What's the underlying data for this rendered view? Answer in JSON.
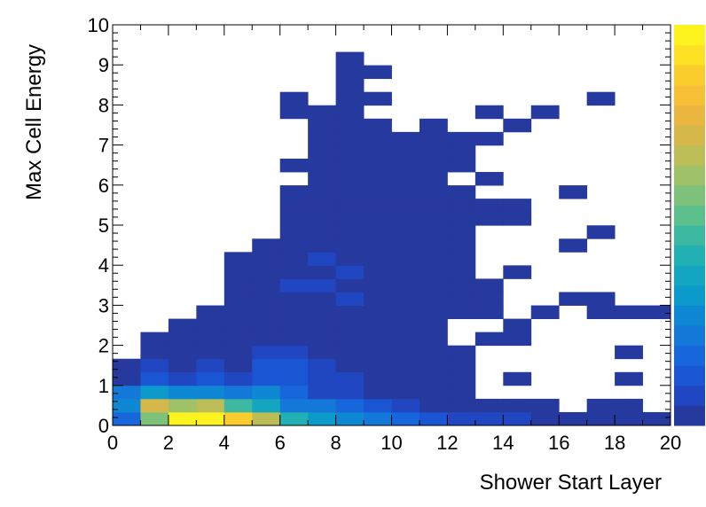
{
  "chart_data": {
    "type": "heatmap",
    "xlabel": "Shower Start Layer",
    "ylabel": "Max Cell Energy",
    "xlim": [
      0,
      20
    ],
    "ylim": [
      0,
      10
    ],
    "x_bin_width": 1,
    "y_bin_width": 0.333,
    "x_ticks": [
      "0",
      "2",
      "4",
      "6",
      "8",
      "10",
      "12",
      "14",
      "16",
      "18",
      "20"
    ],
    "y_ticks": [
      "0",
      "1",
      "2",
      "3",
      "4",
      "5",
      "6",
      "7",
      "8",
      "9",
      "10"
    ],
    "color_scale": {
      "max": 100,
      "palette": [
        "#26399e",
        "#2146c1",
        "#1a55d4",
        "#1866dc",
        "#1478d8",
        "#0e88d2",
        "#0b9ac9",
        "#14a6c0",
        "#21b1b2",
        "#3cb9a0",
        "#5bbf8c",
        "#7dc17a",
        "#9fc167",
        "#bdbd57",
        "#d6b84a",
        "#ebb740",
        "#f6bf36",
        "#fbcd2c",
        "#fde125",
        "#fdf31e"
      ]
    },
    "cells": [
      [
        0,
        0,
        20
      ],
      [
        1,
        0,
        60
      ],
      [
        2,
        0,
        100
      ],
      [
        3,
        0,
        100
      ],
      [
        4,
        0,
        90
      ],
      [
        5,
        0,
        70
      ],
      [
        6,
        0,
        45
      ],
      [
        7,
        0,
        35
      ],
      [
        8,
        0,
        30
      ],
      [
        9,
        0,
        25
      ],
      [
        10,
        0,
        20
      ],
      [
        11,
        0,
        12
      ],
      [
        12,
        0,
        10
      ],
      [
        13,
        0,
        8
      ],
      [
        14,
        0,
        6
      ],
      [
        15,
        0,
        5
      ],
      [
        16,
        0,
        3
      ],
      [
        17,
        0,
        2
      ],
      [
        18,
        0,
        1
      ],
      [
        19,
        0,
        1
      ],
      [
        0,
        1,
        30
      ],
      [
        1,
        1,
        75
      ],
      [
        2,
        1,
        65
      ],
      [
        3,
        1,
        70
      ],
      [
        4,
        1,
        50
      ],
      [
        5,
        1,
        40
      ],
      [
        6,
        1,
        25
      ],
      [
        7,
        1,
        22
      ],
      [
        8,
        1,
        18
      ],
      [
        9,
        1,
        12
      ],
      [
        10,
        1,
        6
      ],
      [
        11,
        1,
        1
      ],
      [
        12,
        1,
        1
      ],
      [
        13,
        1,
        1
      ],
      [
        14,
        1,
        1
      ],
      [
        15,
        1,
        1
      ],
      [
        17,
        1,
        1
      ],
      [
        18,
        1,
        1
      ],
      [
        0,
        2,
        25
      ],
      [
        1,
        2,
        35
      ],
      [
        2,
        2,
        30
      ],
      [
        3,
        2,
        28
      ],
      [
        4,
        2,
        25
      ],
      [
        5,
        2,
        30
      ],
      [
        6,
        2,
        20
      ],
      [
        7,
        2,
        10
      ],
      [
        8,
        2,
        8
      ],
      [
        9,
        2,
        5
      ],
      [
        10,
        2,
        3
      ],
      [
        11,
        2,
        2
      ],
      [
        12,
        2,
        1
      ],
      [
        0,
        3,
        1
      ],
      [
        1,
        3,
        12
      ],
      [
        2,
        3,
        6
      ],
      [
        3,
        3,
        14
      ],
      [
        4,
        3,
        10
      ],
      [
        5,
        3,
        15
      ],
      [
        6,
        3,
        12
      ],
      [
        7,
        3,
        10
      ],
      [
        8,
        3,
        6
      ],
      [
        9,
        3,
        1
      ],
      [
        10,
        3,
        1
      ],
      [
        11,
        3,
        1
      ],
      [
        12,
        3,
        1
      ],
      [
        14,
        3,
        1
      ],
      [
        18,
        3,
        1
      ],
      [
        0,
        4,
        1
      ],
      [
        1,
        4,
        8
      ],
      [
        2,
        4,
        1
      ],
      [
        3,
        4,
        8
      ],
      [
        4,
        4,
        4
      ],
      [
        5,
        4,
        14
      ],
      [
        6,
        4,
        12
      ],
      [
        7,
        4,
        10
      ],
      [
        8,
        4,
        5
      ],
      [
        9,
        4,
        4
      ],
      [
        10,
        4,
        1
      ],
      [
        11,
        4,
        1
      ],
      [
        12,
        4,
        1
      ],
      [
        1,
        5,
        1
      ],
      [
        2,
        5,
        1
      ],
      [
        3,
        5,
        3
      ],
      [
        4,
        5,
        5
      ],
      [
        5,
        5,
        8
      ],
      [
        6,
        5,
        6
      ],
      [
        7,
        5,
        5
      ],
      [
        8,
        5,
        4
      ],
      [
        9,
        5,
        3
      ],
      [
        10,
        5,
        4
      ],
      [
        11,
        5,
        1
      ],
      [
        12,
        5,
        1
      ],
      [
        18,
        5,
        1
      ],
      [
        1,
        6,
        1
      ],
      [
        2,
        6,
        1
      ],
      [
        3,
        6,
        1
      ],
      [
        4,
        6,
        3
      ],
      [
        5,
        6,
        4
      ],
      [
        6,
        6,
        5
      ],
      [
        7,
        6,
        4
      ],
      [
        8,
        6,
        4
      ],
      [
        9,
        6,
        4
      ],
      [
        10,
        6,
        1
      ],
      [
        11,
        6,
        1
      ],
      [
        13,
        6,
        1
      ],
      [
        14,
        6,
        1
      ],
      [
        2,
        7,
        1
      ],
      [
        3,
        7,
        1
      ],
      [
        4,
        7,
        1
      ],
      [
        5,
        7,
        3
      ],
      [
        6,
        7,
        4
      ],
      [
        7,
        7,
        3
      ],
      [
        8,
        7,
        2
      ],
      [
        9,
        7,
        2
      ],
      [
        10,
        7,
        1
      ],
      [
        11,
        7,
        1
      ],
      [
        14,
        7,
        1
      ],
      [
        3,
        8,
        1
      ],
      [
        4,
        8,
        1
      ],
      [
        5,
        8,
        1
      ],
      [
        6,
        8,
        3
      ],
      [
        7,
        8,
        2
      ],
      [
        8,
        8,
        1
      ],
      [
        9,
        8,
        1
      ],
      [
        10,
        8,
        1
      ],
      [
        11,
        8,
        1
      ],
      [
        12,
        8,
        1
      ],
      [
        13,
        8,
        1
      ],
      [
        15,
        8,
        1
      ],
      [
        17,
        8,
        1
      ],
      [
        18,
        8,
        1
      ],
      [
        19,
        8,
        1
      ],
      [
        4,
        9,
        1
      ],
      [
        5,
        9,
        1
      ],
      [
        6,
        9,
        3
      ],
      [
        7,
        9,
        4
      ],
      [
        8,
        9,
        6
      ],
      [
        9,
        9,
        2
      ],
      [
        10,
        9,
        1
      ],
      [
        11,
        9,
        1
      ],
      [
        12,
        9,
        1
      ],
      [
        13,
        9,
        1
      ],
      [
        16,
        9,
        1
      ],
      [
        17,
        9,
        1
      ],
      [
        4,
        10,
        1
      ],
      [
        5,
        10,
        1
      ],
      [
        6,
        10,
        6
      ],
      [
        7,
        10,
        8
      ],
      [
        8,
        10,
        4
      ],
      [
        9,
        10,
        4
      ],
      [
        10,
        10,
        2
      ],
      [
        11,
        10,
        2
      ],
      [
        12,
        10,
        1
      ],
      [
        13,
        10,
        1
      ],
      [
        4,
        11,
        1
      ],
      [
        5,
        11,
        1
      ],
      [
        6,
        11,
        5
      ],
      [
        7,
        11,
        4
      ],
      [
        8,
        11,
        6
      ],
      [
        9,
        11,
        3
      ],
      [
        10,
        11,
        1
      ],
      [
        11,
        11,
        1
      ],
      [
        12,
        11,
        1
      ],
      [
        14,
        11,
        1
      ],
      [
        4,
        12,
        1
      ],
      [
        5,
        12,
        1
      ],
      [
        6,
        12,
        5
      ],
      [
        7,
        12,
        6
      ],
      [
        8,
        12,
        5
      ],
      [
        9,
        12,
        3
      ],
      [
        10,
        12,
        3
      ],
      [
        11,
        12,
        1
      ],
      [
        12,
        12,
        1
      ],
      [
        5,
        13,
        1
      ],
      [
        6,
        13,
        4
      ],
      [
        7,
        13,
        5
      ],
      [
        8,
        13,
        5
      ],
      [
        9,
        13,
        4
      ],
      [
        10,
        13,
        3
      ],
      [
        11,
        13,
        1
      ],
      [
        12,
        13,
        1
      ],
      [
        16,
        13,
        1
      ],
      [
        6,
        14,
        3
      ],
      [
        7,
        14,
        4
      ],
      [
        8,
        14,
        4
      ],
      [
        9,
        14,
        1
      ],
      [
        10,
        14,
        1
      ],
      [
        11,
        14,
        1
      ],
      [
        12,
        14,
        1
      ],
      [
        17,
        14,
        1
      ],
      [
        6,
        15,
        2
      ],
      [
        7,
        15,
        3
      ],
      [
        8,
        15,
        3
      ],
      [
        9,
        15,
        1
      ],
      [
        10,
        15,
        1
      ],
      [
        11,
        15,
        1
      ],
      [
        12,
        15,
        1
      ],
      [
        13,
        15,
        1
      ],
      [
        14,
        15,
        1
      ],
      [
        6,
        16,
        1
      ],
      [
        7,
        16,
        1
      ],
      [
        8,
        16,
        1
      ],
      [
        9,
        16,
        1
      ],
      [
        10,
        16,
        1
      ],
      [
        11,
        16,
        1
      ],
      [
        12,
        16,
        1
      ],
      [
        13,
        16,
        1
      ],
      [
        14,
        16,
        1
      ],
      [
        6,
        17,
        1
      ],
      [
        7,
        17,
        1
      ],
      [
        8,
        17,
        1
      ],
      [
        9,
        17,
        2
      ],
      [
        10,
        17,
        2
      ],
      [
        11,
        17,
        1
      ],
      [
        12,
        17,
        1
      ],
      [
        16,
        17,
        1
      ],
      [
        7,
        18,
        1
      ],
      [
        8,
        18,
        1
      ],
      [
        9,
        18,
        1
      ],
      [
        10,
        18,
        1
      ],
      [
        11,
        18,
        1
      ],
      [
        13,
        18,
        1
      ],
      [
        6,
        19,
        1
      ],
      [
        7,
        19,
        1
      ],
      [
        8,
        19,
        1
      ],
      [
        9,
        19,
        1
      ],
      [
        10,
        19,
        1
      ],
      [
        11,
        19,
        1
      ],
      [
        12,
        19,
        1
      ],
      [
        7,
        20,
        1
      ],
      [
        8,
        20,
        1
      ],
      [
        9,
        20,
        1
      ],
      [
        10,
        20,
        1
      ],
      [
        11,
        20,
        1
      ],
      [
        12,
        20,
        1
      ],
      [
        7,
        21,
        1
      ],
      [
        8,
        21,
        1
      ],
      [
        9,
        21,
        1
      ],
      [
        10,
        21,
        1
      ],
      [
        11,
        21,
        1
      ],
      [
        12,
        21,
        1
      ],
      [
        13,
        21,
        1
      ],
      [
        7,
        22,
        1
      ],
      [
        8,
        22,
        1
      ],
      [
        9,
        22,
        1
      ],
      [
        11,
        22,
        1
      ],
      [
        14,
        22,
        1
      ],
      [
        6,
        23,
        1
      ],
      [
        7,
        23,
        1
      ],
      [
        8,
        23,
        1
      ],
      [
        13,
        23,
        1
      ],
      [
        15,
        23,
        1
      ],
      [
        6,
        24,
        1
      ],
      [
        8,
        24,
        1
      ],
      [
        9,
        24,
        1
      ],
      [
        17,
        24,
        1
      ],
      [
        8,
        25,
        1
      ],
      [
        8,
        26,
        1
      ],
      [
        9,
        26,
        1
      ],
      [
        8,
        27,
        1
      ]
    ]
  }
}
